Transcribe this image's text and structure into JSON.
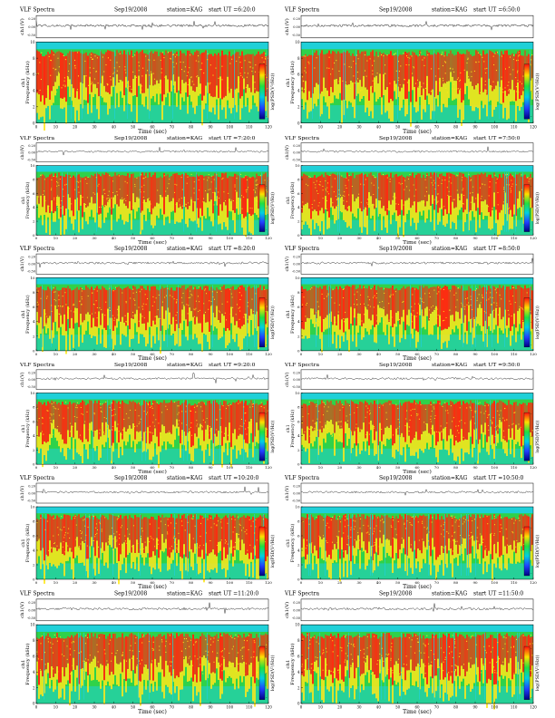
{
  "page": {
    "colors": {
      "spec_low": "#1fd0d8",
      "spec_mid_low": "#2fd24a",
      "spec_mid": "#ffe81a",
      "spec_high": "#ff2a10",
      "waveform": "#222222",
      "colorbar": [
        "#ff1010",
        "#ffe000",
        "#20e040",
        "#00d0e0",
        "#2040ff",
        "#000080"
      ]
    }
  },
  "chart_data": [
    {
      "type": "heatmap",
      "title": "VLF Spectra",
      "date": "Sep19/2008",
      "station": "station=KAG",
      "start_label": "start  UT =6:20:0",
      "wave_ylabel": "ch1(V)",
      "wave_ticks": [
        "0.20",
        "0.00",
        "-0.50"
      ],
      "ylabel": "ch1\nFrequency (kHz)",
      "yticks": [
        "0",
        "2",
        "4",
        "6",
        "8",
        "10"
      ],
      "xlabel": "Time  (sec)",
      "xticks": [
        "0",
        "10",
        "20",
        "30",
        "40",
        "50",
        "60",
        "70",
        "80",
        "90",
        "100",
        "110",
        "120"
      ],
      "cbar_label": "log(PSD(V²/Hz))",
      "cbar_ticks": [
        "-",
        "-",
        "-"
      ],
      "xlim": [
        0,
        120
      ],
      "ylim": [
        0,
        10
      ]
    },
    {
      "type": "heatmap",
      "title": "VLF Spectra",
      "date": "Sep19/2008",
      "station": "station=KAG",
      "start_label": "start  UT =6:50:0",
      "wave_ylabel": "ch1(V)",
      "wave_ticks": [
        "0.20",
        "0.00",
        "-0.50"
      ],
      "ylabel": "ch1\nFrequency (kHz)",
      "yticks": [
        "0",
        "2",
        "4",
        "6",
        "8",
        "10"
      ],
      "xlabel": "Time  (sec)",
      "xticks": [
        "0",
        "10",
        "20",
        "30",
        "40",
        "50",
        "60",
        "70",
        "80",
        "90",
        "100",
        "110",
        "120"
      ],
      "cbar_label": "log(PSD(V²/Hz))",
      "cbar_ticks": [
        "-",
        "-",
        "-"
      ],
      "xlim": [
        0,
        120
      ],
      "ylim": [
        0,
        10
      ]
    },
    {
      "type": "heatmap",
      "title": "VLF Spectra",
      "date": "Sep19/2008",
      "station": "station=KAG",
      "start_label": "start  UT =7:20:0",
      "wave_ylabel": "ch1(V)",
      "wave_ticks": [
        "0.20",
        "0.00",
        "-0.50"
      ],
      "ylabel": "ch1\nFrequency (kHz)",
      "yticks": [
        "0",
        "2",
        "4",
        "6",
        "8",
        "10"
      ],
      "xlabel": "Time  (sec)",
      "xticks": [
        "0",
        "10",
        "20",
        "30",
        "40",
        "50",
        "60",
        "70",
        "80",
        "90",
        "100",
        "110",
        "120"
      ],
      "cbar_label": "log(PSD(V²/Hz))",
      "cbar_ticks": [
        "-",
        "-",
        "-"
      ],
      "xlim": [
        0,
        120
      ],
      "ylim": [
        0,
        10
      ]
    },
    {
      "type": "heatmap",
      "title": "VLF Spectra",
      "date": "Sep19/2008",
      "station": "station=KAG",
      "start_label": "start  UT =7:50:0",
      "wave_ylabel": "ch1(V)",
      "wave_ticks": [
        "0.20",
        "0.00",
        "-0.50"
      ],
      "ylabel": "ch1\nFrequency (kHz)",
      "yticks": [
        "0",
        "2",
        "4",
        "6",
        "8",
        "10"
      ],
      "xlabel": "Time  (sec)",
      "xticks": [
        "0",
        "10",
        "20",
        "30",
        "40",
        "50",
        "60",
        "70",
        "80",
        "90",
        "100",
        "110",
        "120"
      ],
      "cbar_label": "log(PSD(V²/Hz))",
      "cbar_ticks": [
        "-",
        "-",
        "-"
      ],
      "xlim": [
        0,
        120
      ],
      "ylim": [
        0,
        10
      ]
    },
    {
      "type": "heatmap",
      "title": "VLF Spectra",
      "date": "Sep19/2008",
      "station": "station=KAG",
      "start_label": "start  UT =8:20:0",
      "wave_ylabel": "ch1(V)",
      "wave_ticks": [
        "0.20",
        "0.00",
        "-0.50"
      ],
      "ylabel": "ch1\nFrequency (kHz)",
      "yticks": [
        "0",
        "2",
        "4",
        "6",
        "8",
        "10"
      ],
      "xlabel": "Time  (sec)",
      "xticks": [
        "0",
        "10",
        "20",
        "30",
        "40",
        "50",
        "60",
        "70",
        "80",
        "90",
        "100",
        "110",
        "120"
      ],
      "cbar_label": "log(PSD(V²/Hz))",
      "cbar_ticks": [
        "-",
        "-",
        "-"
      ],
      "xlim": [
        0,
        120
      ],
      "ylim": [
        0,
        10
      ]
    },
    {
      "type": "heatmap",
      "title": "VLF Spectra",
      "date": "Sep19/2008",
      "station": "station=KAG",
      "start_label": "start  UT =8:50:0",
      "wave_ylabel": "ch1(V)",
      "wave_ticks": [
        "0.20",
        "0.00",
        "-0.50"
      ],
      "ylabel": "ch1\nFrequency (kHz)",
      "yticks": [
        "0",
        "2",
        "4",
        "6",
        "8",
        "10"
      ],
      "xlabel": "Time  (sec)",
      "xticks": [
        "0",
        "10",
        "20",
        "30",
        "40",
        "50",
        "60",
        "70",
        "80",
        "90",
        "100",
        "110",
        "120"
      ],
      "cbar_label": "log(PSD(V²/Hz))",
      "cbar_ticks": [
        "-",
        "-",
        "-"
      ],
      "xlim": [
        0,
        120
      ],
      "ylim": [
        0,
        10
      ]
    },
    {
      "type": "heatmap",
      "title": "VLF Spectra",
      "date": "Sep19/2008",
      "station": "station=KAG",
      "start_label": "start  UT =9:20:0",
      "wave_ylabel": "ch1(V)",
      "wave_ticks": [
        "0.20",
        "0.00",
        "-0.50"
      ],
      "ylabel": "ch1\nFrequency (kHz)",
      "yticks": [
        "0",
        "2",
        "4",
        "6",
        "8",
        "10"
      ],
      "xlabel": "Time  (sec)",
      "xticks": [
        "0",
        "10",
        "20",
        "30",
        "40",
        "50",
        "60",
        "70",
        "80",
        "90",
        "100",
        "110",
        "120"
      ],
      "cbar_label": "log(PSD(V²/Hz))",
      "cbar_ticks": [
        "-",
        "-",
        "-"
      ],
      "xlim": [
        0,
        120
      ],
      "ylim": [
        0,
        10
      ]
    },
    {
      "type": "heatmap",
      "title": "VLF Spectra",
      "date": "Sep19/2008",
      "station": "station=KAG",
      "start_label": "start  UT =9:50:0",
      "wave_ylabel": "ch1(V)",
      "wave_ticks": [
        "0.20",
        "0.00",
        "-0.50"
      ],
      "ylabel": "ch1\nFrequency (kHz)",
      "yticks": [
        "0",
        "2",
        "4",
        "6",
        "8",
        "10"
      ],
      "xlabel": "Time  (sec)",
      "xticks": [
        "0",
        "10",
        "20",
        "30",
        "40",
        "50",
        "60",
        "70",
        "80",
        "90",
        "100",
        "110",
        "120"
      ],
      "cbar_label": "log(PSD(V²/Hz))",
      "cbar_ticks": [
        "-",
        "-",
        "-"
      ],
      "xlim": [
        0,
        120
      ],
      "ylim": [
        0,
        10
      ]
    },
    {
      "type": "heatmap",
      "title": "VLF Spectra",
      "date": "Sep19/2008",
      "station": "station=KAG",
      "start_label": "start  UT =10:20:0",
      "wave_ylabel": "ch1(V)",
      "wave_ticks": [
        "0.20",
        "0.00",
        "-0.50"
      ],
      "ylabel": "ch1\nFrequency (kHz)",
      "yticks": [
        "0",
        "2",
        "4",
        "6",
        "8",
        "10"
      ],
      "xlabel": "Time  (sec)",
      "xticks": [
        "0",
        "10",
        "20",
        "30",
        "40",
        "50",
        "60",
        "70",
        "80",
        "90",
        "100",
        "110",
        "120"
      ],
      "cbar_label": "log(PSD(V²/Hz))",
      "cbar_ticks": [
        "-",
        "-",
        "-"
      ],
      "xlim": [
        0,
        120
      ],
      "ylim": [
        0,
        10
      ]
    },
    {
      "type": "heatmap",
      "title": "VLF Spectra",
      "date": "Sep19/2008",
      "station": "station=KAG",
      "start_label": "start  UT =10:50:0",
      "wave_ylabel": "ch1(V)",
      "wave_ticks": [
        "0.20",
        "0.00",
        "-0.50"
      ],
      "ylabel": "ch1\nFrequency (kHz)",
      "yticks": [
        "0",
        "2",
        "4",
        "6",
        "8",
        "10"
      ],
      "xlabel": "Time  (sec)",
      "xticks": [
        "0",
        "10",
        "20",
        "30",
        "40",
        "50",
        "60",
        "70",
        "80",
        "90",
        "100",
        "110",
        "120"
      ],
      "cbar_label": "log(PSD(V²/Hz))",
      "cbar_ticks": [
        "-",
        "-",
        "-"
      ],
      "xlim": [
        0,
        120
      ],
      "ylim": [
        0,
        10
      ]
    },
    {
      "type": "heatmap",
      "title": "VLF Spectra",
      "date": "Sep19/2008",
      "station": "station=KAG",
      "start_label": "start  UT =11:20:0",
      "wave_ylabel": "ch1(V)",
      "wave_ticks": [
        "0.20",
        "0.00",
        "-0.50"
      ],
      "ylabel": "ch1\nFrequency (kHz)",
      "yticks": [
        "0",
        "2",
        "4",
        "6",
        "8",
        "10"
      ],
      "xlabel": "Time  (sec)",
      "xticks": [
        "0",
        "10",
        "20",
        "30",
        "40",
        "50",
        "60",
        "70",
        "80",
        "90",
        "100",
        "110",
        "120"
      ],
      "cbar_label": "log(PSD(V²/Hz))",
      "cbar_ticks": [
        "-",
        "-",
        "-"
      ],
      "xlim": [
        0,
        120
      ],
      "ylim": [
        0,
        10
      ]
    },
    {
      "type": "heatmap",
      "title": "VLF Spectra",
      "date": "Sep19/2008",
      "station": "station=KAG",
      "start_label": "start  UT =11:50:0",
      "wave_ylabel": "ch1(V)",
      "wave_ticks": [
        "0.20",
        "0.00",
        "-0.50"
      ],
      "ylabel": "ch1\nFrequency (kHz)",
      "yticks": [
        "0",
        "2",
        "4",
        "6",
        "8",
        "10"
      ],
      "xlabel": "Time  (sec)",
      "xticks": [
        "0",
        "10",
        "20",
        "30",
        "40",
        "50",
        "60",
        "70",
        "80",
        "90",
        "100",
        "110",
        "120"
      ],
      "cbar_label": "log(PSD(V²/Hz))",
      "cbar_ticks": [
        "-",
        "-",
        "-"
      ],
      "xlim": [
        0,
        120
      ],
      "ylim": [
        0,
        10
      ]
    }
  ]
}
